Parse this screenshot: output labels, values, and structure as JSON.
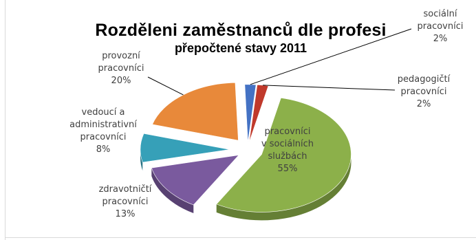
{
  "chart_data": {
    "type": "pie",
    "title": "Rozděleni zaměstnanců dle profesi",
    "subtitle": "přepočtené stavy 2011",
    "slices": [
      {
        "lines": [
          "sociální",
          "pracovníci"
        ],
        "pct_label": "2%",
        "value": 2,
        "color": "#4472c4"
      },
      {
        "lines": [
          "pedagogičtí",
          "pracovníci"
        ],
        "pct_label": "2%",
        "value": 2,
        "color": "#c0392b"
      },
      {
        "lines": [
          "pracovníci",
          "v sociálních",
          "službách"
        ],
        "pct_label": "55%",
        "value": 55,
        "color": "#8cb04a"
      },
      {
        "lines": [
          "zdravotničtí",
          "pracovníci"
        ],
        "pct_label": "13%",
        "value": 13,
        "color": "#7a5a9e"
      },
      {
        "lines": [
          "vedoucí a",
          "administrativní",
          "pracovníci"
        ],
        "pct_label": "8%",
        "value": 8,
        "color": "#36a0b8"
      },
      {
        "lines": [
          "provozní",
          "pracovníci"
        ],
        "pct_label": "20%",
        "value": 20,
        "color": "#e8893a"
      }
    ]
  }
}
